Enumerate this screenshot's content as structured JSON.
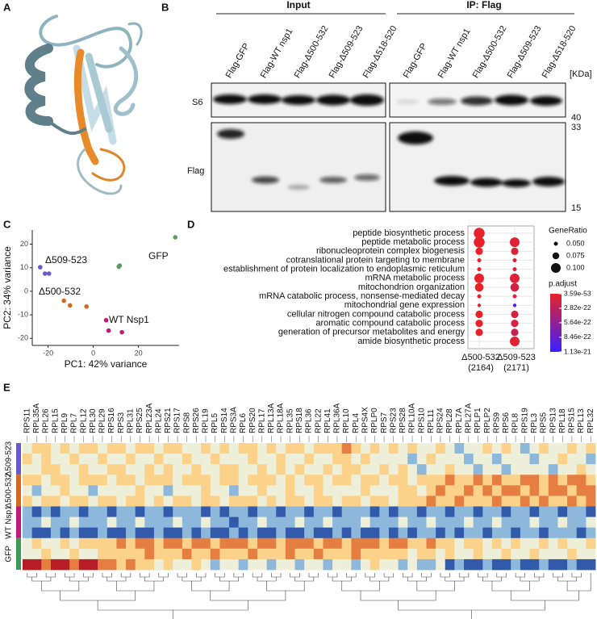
{
  "panel_a": {
    "label": "A"
  },
  "panel_b": {
    "label": "B",
    "groups": [
      "Input",
      "IP: Flag"
    ],
    "lanes": [
      "Flag-GFP",
      "Flag-WT nsp1",
      "Flag-Δ500-532",
      "Flag-Δ509-523",
      "Flag-Δ518-520"
    ],
    "unit": "[KDa]",
    "rows": [
      "S6",
      "Flag"
    ],
    "markers": [
      "40",
      "33",
      "15"
    ]
  },
  "chart_data": [
    {
      "type": "scatter",
      "panel": "C",
      "xlabel": "PC1: 42% variance",
      "ylabel": "PC2: 34% variance",
      "series": [
        {
          "name": "GFP",
          "color": "#5a9e5a",
          "x": [
            36.3,
            11.7,
            11.3
          ],
          "values": [
            22.9,
            10.9,
            10.4
          ]
        },
        {
          "name": "Δ509-523",
          "color": "#6a5acd",
          "x": [
            -23.5,
            -21.4,
            -19.6
          ],
          "values": [
            10.2,
            7.5,
            7.5
          ]
        },
        {
          "name": "Δ500-532",
          "color": "#d2691e",
          "x": [
            -13,
            -10.3,
            -3
          ],
          "values": [
            -4,
            -6,
            -6.5
          ]
        },
        {
          "name": "WT Nsp1",
          "color": "#c2187a",
          "x": [
            5.7,
            6.8,
            12.7
          ],
          "values": [
            -12.3,
            -16.7,
            -17.4
          ]
        }
      ],
      "xlim": [
        -27,
        38
      ],
      "ylim": [
        -23,
        26
      ],
      "xticks": [
        -20,
        0,
        20
      ],
      "yticks": [
        -20,
        -10,
        0,
        10,
        20
      ]
    },
    {
      "type": "dot",
      "panel": "D",
      "categories": [
        "peptide biosynthetic process",
        "peptide metabolic process",
        "ribonucleoprotein complex biogenesis",
        "cotranslational protein targeting to membrane",
        "establishment of protein localization to endoplasmic reticulum",
        "mRNA metabolic process",
        "mitochondrion organization",
        "mRNA catabolic process, nonsense-mediated decay",
        "mitochondrial gene expression",
        "cellular nitrogen compound catabolic process",
        "aromatic compound catabolic process",
        "generation of precursor metabolites and energy",
        "amide biosynthetic process"
      ],
      "series": [
        {
          "name": "Δ500-532",
          "count": "(2164)",
          "values": [
            0.11,
            0.11,
            0.08,
            0.05,
            0.05,
            0.1,
            0.09,
            0.05,
            0.045,
            0.08,
            0.08,
            0.08,
            null
          ],
          "p_adjust": [
            1e-50,
            1e-50,
            1e-45,
            1e-40,
            1e-40,
            1e-45,
            2e-30,
            1e-40,
            5e-25,
            1e-35,
            1e-35,
            1e-30,
            null
          ]
        },
        {
          "name": "Δ509-523",
          "count": "(2171)",
          "values": [
            null,
            0.1,
            0.08,
            0.05,
            0.05,
            0.1,
            0.09,
            0.05,
            0.045,
            0.08,
            0.08,
            0.08,
            0.1
          ],
          "p_adjust": [
            null,
            5e-23,
            8e-23,
            1e-22,
            1e-22,
            6e-23,
            1.5e-22,
            1e-22,
            1.05e-21,
            1.2e-22,
            1.2e-22,
            2e-22,
            5e-23
          ]
        }
      ],
      "size_title": "GeneRatio",
      "size_ticks": [
        {
          "value": 0.05,
          "label": "0.050"
        },
        {
          "value": 0.075,
          "label": "0.075"
        },
        {
          "value": 0.1,
          "label": "0.100"
        }
      ],
      "color_title": "p.adjust",
      "color_ticks": [
        {
          "value": 3.59e-53,
          "label": "3.59e-53"
        },
        {
          "value": 2.82e-22,
          "label": "2.82e-22"
        },
        {
          "value": 5.64e-22,
          "label": "5.64e-22"
        },
        {
          "value": 8.46e-22,
          "label": "8.46e-22"
        },
        {
          "value": 1.13e-21,
          "label": "1.13e-21"
        }
      ],
      "colors": [
        "#e8222a",
        "#3a1fff"
      ]
    },
    {
      "type": "heatmap",
      "panel": "E",
      "columns": [
        "RPS11",
        "RPL35A",
        "RPL26",
        "RPL15",
        "RPL9",
        "RPL7",
        "RPL12",
        "RPL30",
        "RPL29",
        "RPS16",
        "RPS3",
        "RPL31",
        "RPS25",
        "RPL23A",
        "RPL24",
        "RPS21",
        "RPS17",
        "RPS8",
        "RPS26",
        "RPL19",
        "RPL5",
        "RPS14",
        "RPS3A",
        "RPL6",
        "RPS20",
        "RPL17",
        "RPL13A",
        "RPL18A",
        "RPL35",
        "RPS18",
        "RPL36",
        "RPL22",
        "RPL41",
        "RPL36A",
        "RPL10",
        "RPL4",
        "RPS4X",
        "RPLP0",
        "RPS7",
        "RPS23",
        "RPS28",
        "RPL10A",
        "RPS10",
        "RPL11",
        "RPS24",
        "RPL28",
        "RPL7A",
        "RPL27A",
        "RPLP1",
        "RPLP2",
        "RPS9",
        "RPS6",
        "RPL8",
        "RPS19",
        "RPL3",
        "RPS5",
        "RPS13",
        "RPL18",
        "RPS15",
        "RPL13",
        "RPL32"
      ],
      "groups": [
        {
          "name": "Δ509-523",
          "color": "#6a5acd"
        },
        {
          "name": "Δ500-532",
          "color": "#d2691e"
        },
        {
          "name": "WT Nsp1",
          "color": "#c2187a"
        },
        {
          "name": "GFP",
          "color": "#3f9a5a"
        }
      ],
      "values": [
        [
          0,
          1,
          1,
          0,
          1,
          0,
          1,
          1,
          0,
          1,
          1,
          0,
          1,
          1,
          0,
          1,
          1,
          0,
          0,
          1,
          0,
          1,
          0,
          1,
          1,
          0,
          1,
          0,
          1,
          1,
          0,
          1,
          1,
          1,
          2,
          1,
          0,
          1,
          0,
          1,
          0,
          1,
          0,
          0,
          1,
          0,
          -1,
          0,
          0,
          1,
          0,
          1,
          0,
          -1,
          0,
          1,
          0,
          0,
          1,
          0,
          1
        ],
        [
          1,
          0,
          1,
          0,
          0,
          1,
          0,
          0,
          1,
          0,
          0,
          1,
          0,
          0,
          1,
          0,
          0,
          1,
          0,
          0,
          1,
          0,
          0,
          0,
          1,
          0,
          0,
          1,
          0,
          0,
          1,
          0,
          0,
          1,
          1,
          0,
          1,
          0,
          0,
          0,
          0,
          -1,
          0,
          1,
          0,
          0,
          0,
          -1,
          0,
          0,
          -1,
          0,
          0,
          0,
          -1,
          0,
          0,
          1,
          0,
          0,
          -1
        ],
        [
          0,
          0,
          1,
          1,
          0,
          0,
          1,
          0,
          0,
          1,
          1,
          0,
          0,
          1,
          0,
          1,
          0,
          0,
          1,
          0,
          0,
          1,
          1,
          0,
          0,
          1,
          0,
          1,
          0,
          1,
          0,
          0,
          1,
          0,
          1,
          1,
          0,
          0,
          1,
          0,
          1,
          0,
          -1,
          0,
          0,
          1,
          0,
          0,
          -1,
          0,
          0,
          -1,
          0,
          0,
          0,
          0,
          -1,
          0,
          0,
          1,
          0
        ],
        [
          1,
          1,
          0,
          1,
          1,
          0,
          1,
          1,
          1,
          0,
          1,
          1,
          0,
          1,
          1,
          1,
          0,
          1,
          1,
          1,
          0,
          1,
          1,
          0,
          1,
          1,
          1,
          0,
          1,
          0,
          1,
          1,
          0,
          1,
          1,
          0,
          1,
          1,
          0,
          1,
          1,
          0,
          1,
          1,
          1,
          2,
          1,
          1,
          2,
          1,
          2,
          1,
          1,
          2,
          2,
          1,
          2,
          1,
          2,
          2,
          1
        ],
        [
          0,
          -1,
          0,
          0,
          1,
          0,
          0,
          -1,
          0,
          0,
          0,
          0,
          1,
          0,
          0,
          -1,
          0,
          0,
          0,
          1,
          0,
          0,
          -1,
          0,
          0,
          1,
          0,
          0,
          1,
          0,
          0,
          1,
          0,
          0,
          0,
          0,
          1,
          0,
          0,
          0,
          1,
          1,
          0,
          1,
          2,
          1,
          1,
          2,
          1,
          2,
          1,
          2,
          2,
          1,
          2,
          1,
          2,
          2,
          1,
          2,
          2
        ],
        [
          1,
          0,
          1,
          1,
          0,
          1,
          1,
          0,
          1,
          1,
          0,
          1,
          1,
          0,
          1,
          0,
          1,
          1,
          0,
          1,
          1,
          0,
          1,
          1,
          1,
          0,
          1,
          0,
          1,
          1,
          0,
          1,
          1,
          0,
          1,
          1,
          0,
          1,
          1,
          0,
          1,
          1,
          1,
          2,
          1,
          1,
          2,
          1,
          1,
          1,
          2,
          1,
          1,
          2,
          1,
          2,
          1,
          1,
          2,
          1,
          2
        ],
        [
          -1,
          -2,
          -1,
          -2,
          -1,
          -1,
          -2,
          -1,
          -1,
          -2,
          -1,
          -1,
          -2,
          -1,
          -1,
          -2,
          -1,
          -1,
          -1,
          -2,
          -1,
          -2,
          -1,
          -1,
          -2,
          -1,
          -1,
          -2,
          -1,
          -1,
          -2,
          -1,
          -1,
          -2,
          -1,
          -1,
          -1,
          -2,
          -1,
          -2,
          -1,
          -1,
          -2,
          -1,
          -1,
          -2,
          -1,
          -1,
          -2,
          -1,
          -1,
          -2,
          -1,
          -1,
          -2,
          -1,
          -1,
          -2,
          -1,
          -1,
          -2
        ],
        [
          -1,
          -1,
          0,
          -1,
          -1,
          0,
          -1,
          -1,
          -1,
          0,
          -1,
          -1,
          0,
          -1,
          -1,
          -1,
          0,
          -1,
          -1,
          0,
          -1,
          -1,
          -2,
          -1,
          -1,
          0,
          -1,
          -1,
          -1,
          0,
          -1,
          -1,
          0,
          -1,
          -1,
          -1,
          0,
          -1,
          -1,
          -1,
          0,
          -1,
          -1,
          0,
          -1,
          -1,
          -1,
          0,
          -1,
          -1,
          0,
          -1,
          -1,
          -1,
          0,
          -1,
          -1,
          0,
          -1,
          -1,
          0
        ],
        [
          -1,
          -2,
          -2,
          -1,
          -2,
          -1,
          -2,
          -2,
          -1,
          -2,
          -2,
          -1,
          -2,
          -2,
          -1,
          -2,
          -2,
          -1,
          -2,
          -1,
          -2,
          -2,
          -1,
          -2,
          -1,
          -2,
          -2,
          -1,
          -2,
          -2,
          -1,
          -2,
          -2,
          -1,
          -2,
          -1,
          -2,
          -2,
          -1,
          -2,
          -1,
          -2,
          -1,
          -1,
          -2,
          -1,
          -2,
          -1,
          -1,
          -2,
          -1,
          -1,
          -2,
          -1,
          -1,
          -2,
          -1,
          -1,
          -1,
          -2,
          -1
        ],
        [
          0,
          1,
          0,
          0,
          1,
          0,
          1,
          1,
          1,
          1,
          2,
          1,
          2,
          2,
          1,
          2,
          2,
          1,
          2,
          2,
          1,
          2,
          2,
          2,
          1,
          2,
          2,
          1,
          2,
          2,
          2,
          1,
          2,
          2,
          1,
          2,
          2,
          2,
          1,
          2,
          2,
          1,
          1,
          2,
          1,
          1,
          0,
          1,
          1,
          0,
          1,
          0,
          1,
          0,
          0,
          1,
          0,
          1,
          0,
          0,
          1
        ],
        [
          0,
          0,
          1,
          0,
          0,
          1,
          0,
          0,
          1,
          1,
          1,
          1,
          1,
          2,
          1,
          1,
          1,
          2,
          1,
          1,
          2,
          1,
          1,
          1,
          2,
          1,
          1,
          1,
          2,
          1,
          1,
          2,
          1,
          1,
          1,
          2,
          1,
          1,
          1,
          1,
          1,
          0,
          1,
          1,
          0,
          1,
          0,
          0,
          1,
          0,
          0,
          1,
          0,
          0,
          1,
          0,
          0,
          0,
          1,
          0,
          0
        ],
        [
          3,
          3,
          2,
          3,
          3,
          2,
          3,
          3,
          2,
          2,
          1,
          2,
          1,
          1,
          0,
          1,
          0,
          0,
          1,
          0,
          -1,
          0,
          0,
          -1,
          0,
          0,
          -1,
          0,
          0,
          -1,
          0,
          0,
          -1,
          0,
          0,
          -1,
          0,
          1,
          0,
          0,
          -1,
          0,
          -1,
          -1,
          0,
          -2,
          -1,
          -2,
          -2,
          -1,
          -2,
          -2,
          -1,
          -2,
          -2,
          -1,
          -2,
          -2,
          -1,
          -2,
          -2
        ]
      ]
    }
  ]
}
